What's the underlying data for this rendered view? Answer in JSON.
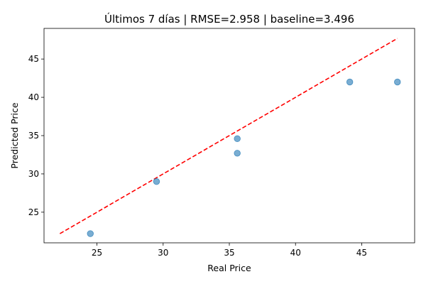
{
  "chart_data": {
    "type": "scatter",
    "title": "Últimos 7 días | RMSE=2.958 | baseline=3.496",
    "xlabel": "Real Price",
    "ylabel": "Predicted Price",
    "xlim": [
      21,
      49
    ],
    "ylim": [
      21,
      49
    ],
    "xticks": [
      25,
      30,
      35,
      40,
      45
    ],
    "yticks": [
      25,
      30,
      35,
      40,
      45
    ],
    "grid": false,
    "points": [
      {
        "x": 24.5,
        "y": 22.2
      },
      {
        "x": 29.5,
        "y": 29.0
      },
      {
        "x": 35.6,
        "y": 34.6
      },
      {
        "x": 35.6,
        "y": 32.7
      },
      {
        "x": 44.1,
        "y": 42.0
      },
      {
        "x": 47.7,
        "y": 42.0
      }
    ],
    "reference_line": {
      "x": [
        22.2,
        47.7
      ],
      "y": [
        22.2,
        47.7
      ],
      "style": "dashed"
    },
    "colors": {
      "points": "#1f77b4",
      "reference_line": "#ff0000"
    }
  }
}
